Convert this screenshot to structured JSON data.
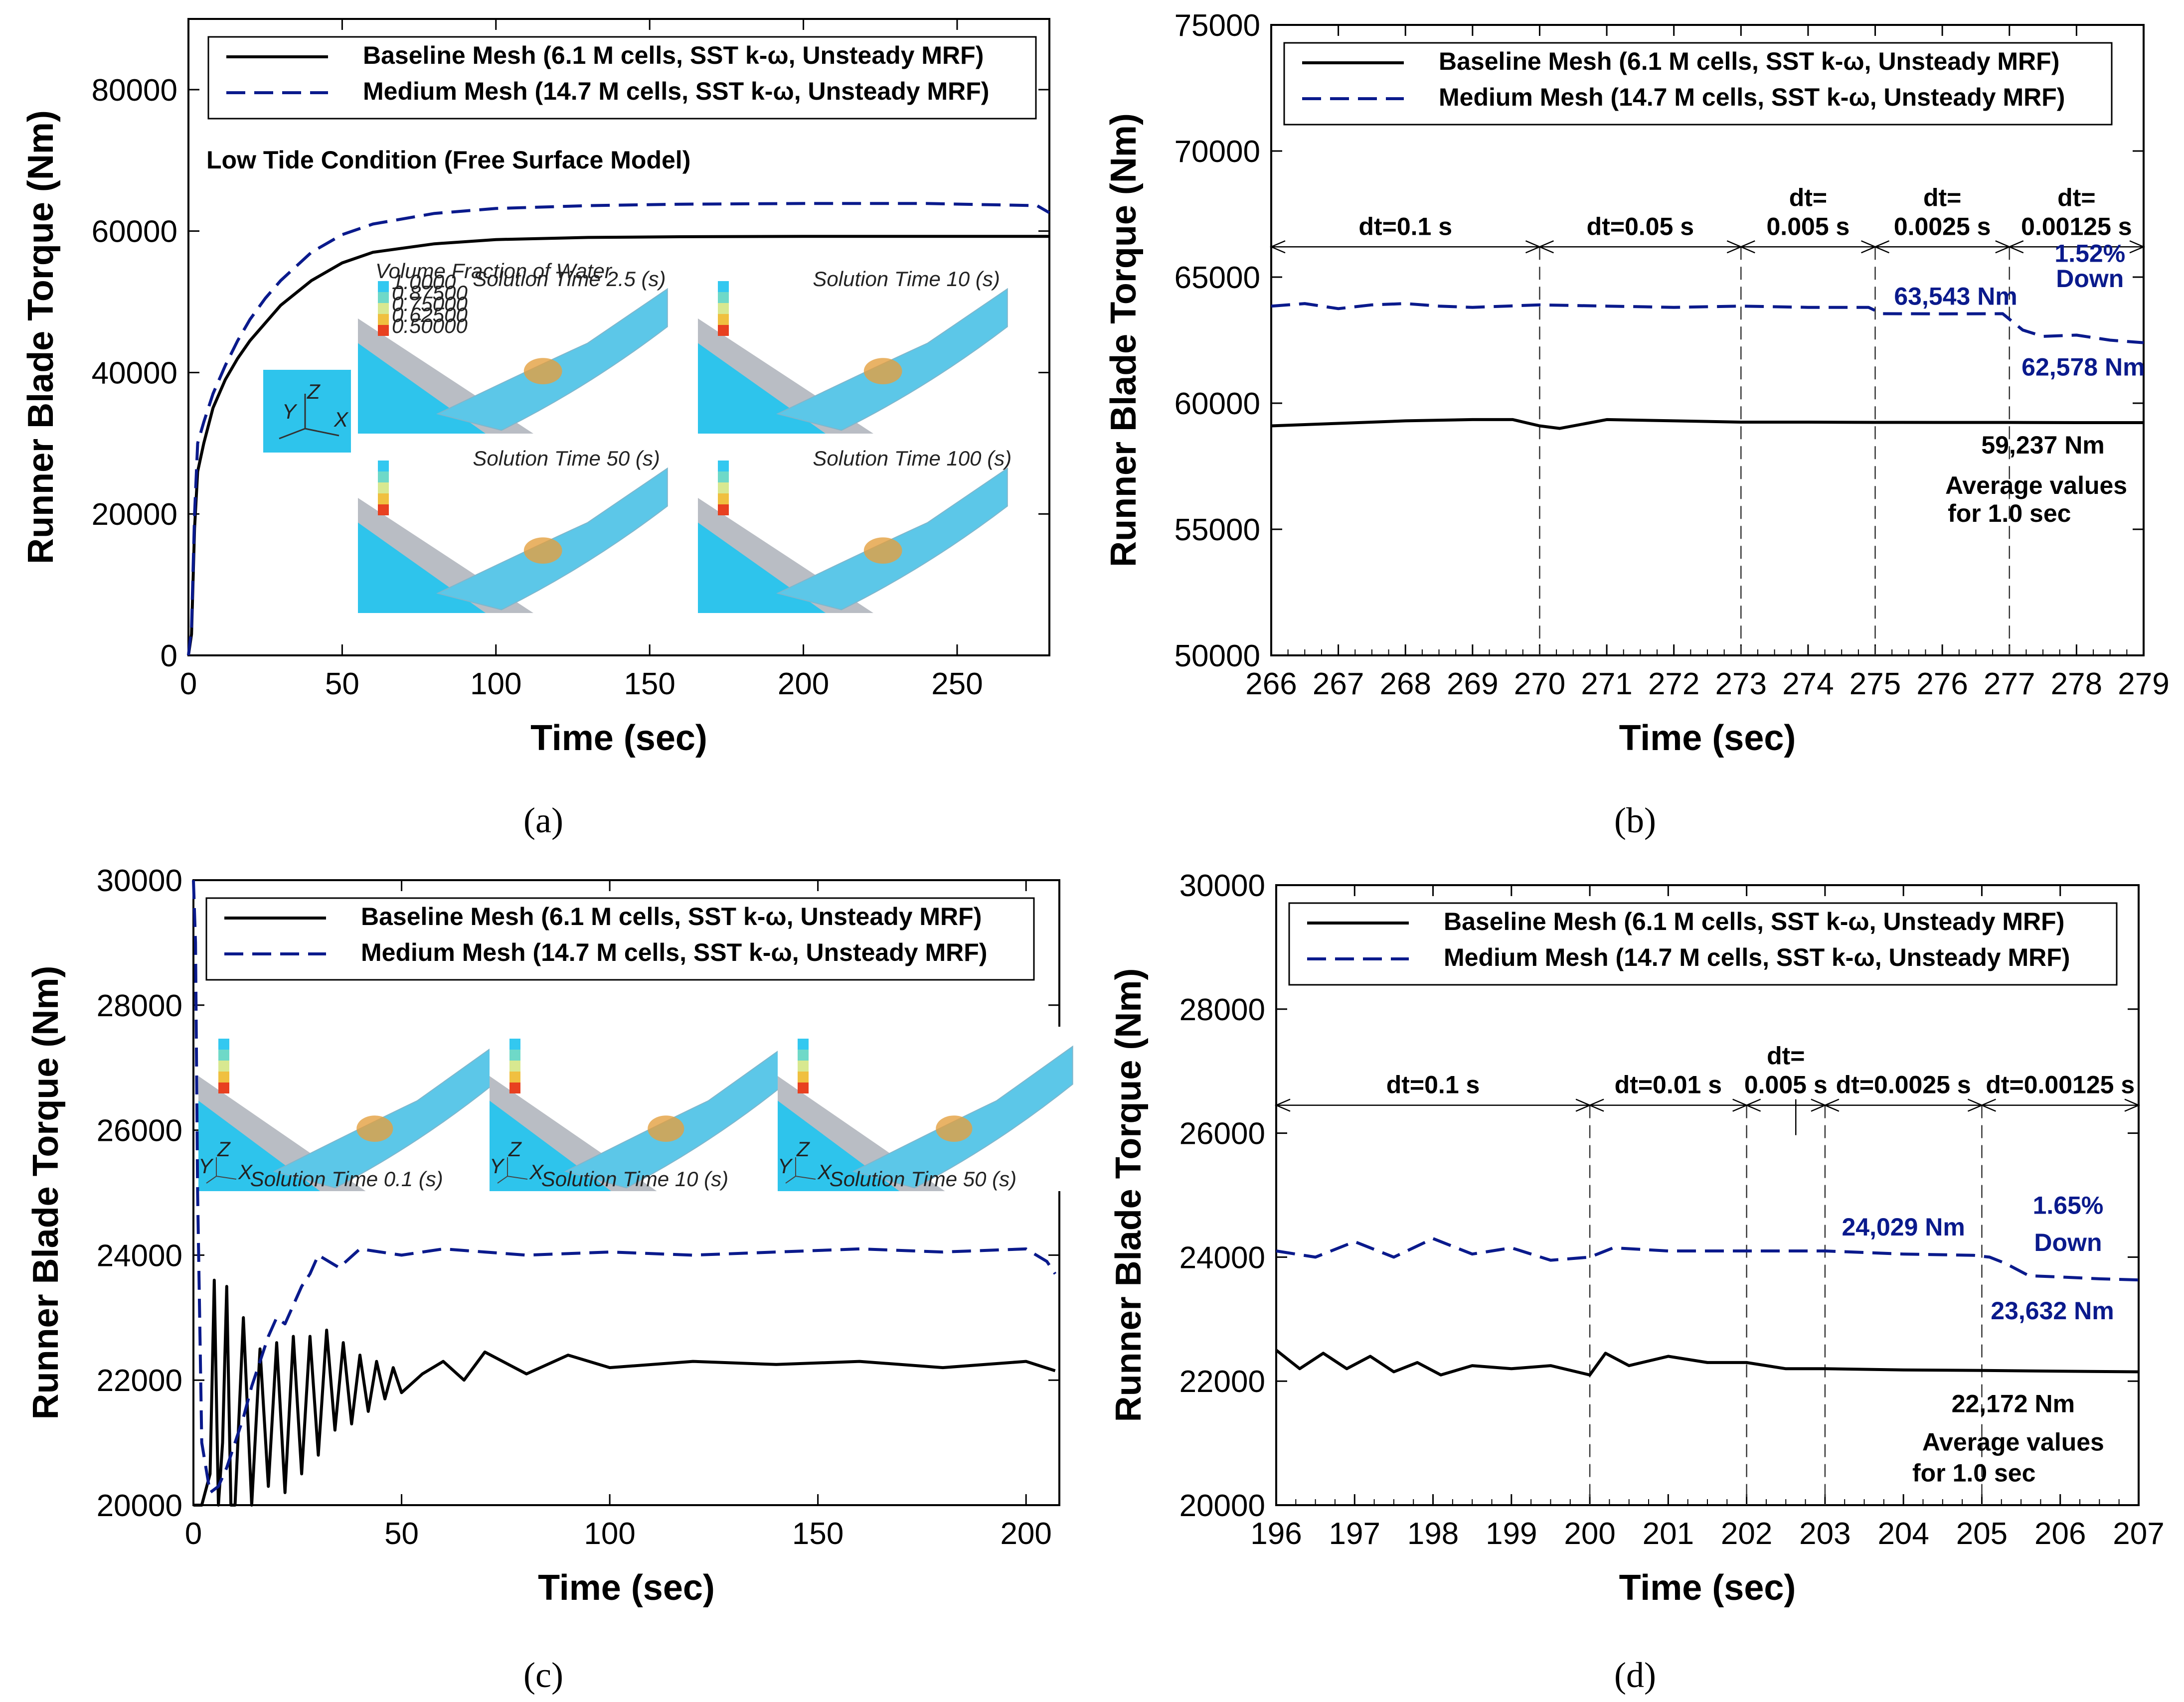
{
  "chart_data": [
    {
      "panel": "a",
      "type": "line",
      "caption": "(a)",
      "xlabel": "Time (sec)",
      "ylabel": "Runner Blade Torque (Nm)",
      "xlim": [
        0,
        280
      ],
      "ylim": [
        0,
        90000
      ],
      "xticks": [
        "0",
        "50",
        "100",
        "150",
        "200",
        "250"
      ],
      "yticks": [
        "0",
        "20000",
        "40000",
        "60000",
        "80000"
      ],
      "subtitle": "Low Tide Condition (Free Surface Model)",
      "legend": [
        "Baseline Mesh (6.1 M cells, SST k-ω, Unsteady MRF)",
        "Medium Mesh (14.7 M cells, SST k-ω, Unsteady MRF)"
      ],
      "series": [
        {
          "name": "Baseline Mesh (6.1 M cells, SST k-ω, Unsteady MRF)",
          "x": [
            0,
            1,
            2,
            3,
            5,
            8,
            12,
            16,
            20,
            25,
            30,
            40,
            50,
            60,
            80,
            100,
            130,
            160,
            200,
            240,
            280
          ],
          "values": [
            0,
            3000,
            18000,
            26000,
            30000,
            35000,
            39000,
            42000,
            44500,
            47000,
            49500,
            53000,
            55500,
            57000,
            58200,
            58800,
            59100,
            59200,
            59250,
            59250,
            59250
          ]
        },
        {
          "name": "Medium Mesh (14.7 M cells, SST k-ω, Unsteady MRF)",
          "x": [
            0,
            1,
            2,
            3,
            5,
            8,
            12,
            16,
            20,
            25,
            30,
            40,
            50,
            60,
            80,
            100,
            130,
            160,
            200,
            240,
            276,
            280
          ],
          "values": [
            0,
            4000,
            20000,
            30000,
            33000,
            37000,
            41000,
            44500,
            47500,
            50500,
            53000,
            57000,
            59500,
            61000,
            62500,
            63200,
            63600,
            63800,
            63900,
            63900,
            63600,
            62600
          ]
        }
      ],
      "insets": [
        "Solution Time 2.5 (s)",
        "Solution Time 10 (s)",
        "Solution Time 50 (s)",
        "Solution Time 100 (s)"
      ],
      "inset_legend": [
        "Volume Fraction of Water",
        "1.0000",
        "0.87500",
        "0.75000",
        "0.62500",
        "0.50000"
      ],
      "axes_icon": [
        "Z",
        "Y",
        "X"
      ]
    },
    {
      "panel": "b",
      "type": "line",
      "caption": "(b)",
      "xlabel": "Time (sec)",
      "ylabel": "Runner Blade Torque (Nm)",
      "xlim": [
        266,
        279
      ],
      "ylim": [
        50000,
        75000
      ],
      "xticks": [
        "266",
        "267",
        "268",
        "269",
        "270",
        "271",
        "272",
        "273",
        "274",
        "275",
        "276",
        "277",
        "278",
        "279"
      ],
      "yticks": [
        "50000",
        "55000",
        "60000",
        "65000",
        "70000",
        "75000"
      ],
      "legend": [
        "Baseline Mesh (6.1 M cells, SST k-ω, Unsteady MRF)",
        "Medium Mesh (14.7 M cells, SST k-ω, Unsteady MRF)"
      ],
      "series": [
        {
          "name": "Baseline Mesh (6.1 M cells, SST k-ω, Unsteady MRF)",
          "x": [
            266,
            267,
            268,
            269,
            269.6,
            270,
            270.3,
            270.7,
            271,
            272,
            273,
            274,
            275,
            276,
            277,
            278,
            279
          ],
          "values": [
            59100,
            59200,
            59300,
            59350,
            59350,
            59100,
            59000,
            59200,
            59350,
            59300,
            59250,
            59250,
            59240,
            59237,
            59237,
            59230,
            59230
          ]
        },
        {
          "name": "Medium Mesh (14.7 M cells, SST k-ω, Unsteady MRF)",
          "x": [
            266,
            266.5,
            267,
            267.5,
            268,
            268.5,
            269,
            269.5,
            270,
            271,
            272,
            273,
            274,
            274.9,
            275.1,
            276,
            276.9,
            277.2,
            277.5,
            278,
            278.5,
            279
          ],
          "values": [
            63850,
            63950,
            63750,
            63900,
            63950,
            63850,
            63800,
            63850,
            63900,
            63850,
            63800,
            63850,
            63800,
            63800,
            63550,
            63543,
            63550,
            62900,
            62650,
            62700,
            62500,
            62400
          ]
        }
      ],
      "regions": [
        {
          "label": "dt=0.1 s",
          "from": 266,
          "to": 270
        },
        {
          "label": "dt=0.05 s",
          "from": 270,
          "to": 273
        },
        {
          "label": "dt=\n0.005 s",
          "from": 273,
          "to": 275
        },
        {
          "label": "dt=\n0.0025 s",
          "from": 275,
          "to": 277
        },
        {
          "label": "dt=\n0.00125 s",
          "from": 277,
          "to": 279
        }
      ],
      "annotations": {
        "medium_before": "63,543 Nm",
        "medium_after": "62,578 Nm",
        "drop": "1.52%",
        "drop_word": "Down",
        "baseline": "59,237 Nm",
        "avg1": "Average values",
        "avg2": "for 1.0 sec"
      }
    },
    {
      "panel": "c",
      "type": "line",
      "caption": "(c)",
      "xlabel": "Time (sec)",
      "ylabel": "Runner Blade Torque (Nm)",
      "xlim": [
        0,
        208
      ],
      "ylim": [
        20000,
        30000
      ],
      "xticks": [
        "0",
        "50",
        "100",
        "150",
        "200"
      ],
      "yticks": [
        "20000",
        "22000",
        "24000",
        "26000",
        "28000",
        "30000"
      ],
      "legend": [
        "Baseline Mesh (6.1 M cells, SST k-ω, Unsteady MRF)",
        "Medium Mesh (14.7 M cells, SST k-ω, Unsteady MRF)"
      ],
      "series": [
        {
          "name": "Baseline Mesh (6.1 M cells, SST k-ω, Unsteady MRF)",
          "x": [
            0,
            2,
            4,
            5,
            6,
            7,
            8,
            9,
            10,
            11,
            12,
            14,
            16,
            18,
            20,
            22,
            24,
            26,
            28,
            30,
            32,
            34,
            36,
            38,
            40,
            42,
            44,
            46,
            48,
            50,
            55,
            60,
            65,
            70,
            80,
            90,
            100,
            120,
            140,
            160,
            180,
            200,
            207
          ],
          "values": [
            20000,
            20000,
            20500,
            23600,
            20000,
            21000,
            23500,
            20000,
            20000,
            21500,
            23000,
            20000,
            22500,
            20300,
            22600,
            20200,
            22700,
            20500,
            22700,
            20800,
            22800,
            21200,
            22600,
            21300,
            22400,
            21500,
            22300,
            21700,
            22200,
            21800,
            22100,
            22300,
            22000,
            22450,
            22100,
            22400,
            22200,
            22300,
            22250,
            22300,
            22200,
            22300,
            22150
          ]
        },
        {
          "name": "Medium Mesh (14.7 M cells, SST k-ω, Unsteady MRF)",
          "x": [
            0,
            0.5,
            1,
            2,
            4,
            6,
            8,
            10,
            12,
            14,
            16,
            18,
            20,
            22,
            24,
            26,
            28,
            30,
            35,
            40,
            50,
            60,
            70,
            80,
            100,
            120,
            140,
            160,
            180,
            200,
            205,
            207
          ],
          "values": [
            30000,
            29000,
            25000,
            21000,
            20200,
            20300,
            20600,
            21000,
            21400,
            21900,
            22300,
            22700,
            23000,
            22900,
            23200,
            23500,
            23700,
            24000,
            23800,
            24100,
            24000,
            24100,
            24050,
            24000,
            24050,
            24000,
            24050,
            24100,
            24050,
            24100,
            23900,
            23700
          ]
        }
      ],
      "insets": [
        "Solution Time 0.1 (s)",
        "Solution Time 10 (s)",
        "Solution Time 50 (s)"
      ],
      "axes_icon": [
        "Z",
        "Y",
        "X"
      ]
    },
    {
      "panel": "d",
      "type": "line",
      "caption": "(d)",
      "xlabel": "Time (sec)",
      "ylabel": "Runner Blade Torque (Nm)",
      "xlim": [
        196,
        207
      ],
      "ylim": [
        20000,
        30000
      ],
      "xticks": [
        "196",
        "197",
        "198",
        "199",
        "200",
        "201",
        "202",
        "203",
        "204",
        "205",
        "206",
        "207"
      ],
      "yticks": [
        "20000",
        "22000",
        "24000",
        "26000",
        "28000",
        "30000"
      ],
      "legend": [
        "Baseline Mesh (6.1 M cells, SST k-ω, Unsteady MRF)",
        "Medium Mesh (14.7 M cells, SST k-ω, Unsteady MRF)"
      ],
      "series": [
        {
          "name": "Baseline Mesh (6.1 M cells, SST k-ω, Unsteady MRF)",
          "x": [
            196,
            196.3,
            196.6,
            196.9,
            197.2,
            197.5,
            197.8,
            198.1,
            198.5,
            199,
            199.5,
            200,
            200.2,
            200.5,
            201,
            201.5,
            202,
            202.5,
            203,
            204,
            205,
            206,
            207
          ],
          "values": [
            22500,
            22200,
            22450,
            22200,
            22400,
            22150,
            22300,
            22100,
            22250,
            22200,
            22250,
            22100,
            22450,
            22250,
            22400,
            22300,
            22300,
            22200,
            22200,
            22180,
            22172,
            22160,
            22150
          ]
        },
        {
          "name": "Medium Mesh (14.7 M cells, SST k-ω, Unsteady MRF)",
          "x": [
            196,
            196.5,
            197,
            197.5,
            198,
            198.5,
            199,
            199.5,
            200,
            200.3,
            201,
            202,
            203,
            204,
            204.9,
            205.1,
            205.3,
            205.6,
            206,
            206.5,
            207
          ],
          "values": [
            24100,
            24000,
            24250,
            24000,
            24300,
            24050,
            24150,
            23950,
            24000,
            24150,
            24100,
            24100,
            24100,
            24050,
            24029,
            24000,
            23900,
            23700,
            23680,
            23650,
            23632
          ]
        }
      ],
      "regions": [
        {
          "label": "dt=0.1 s",
          "from": 196,
          "to": 200
        },
        {
          "label": "dt=0.01 s",
          "from": 200,
          "to": 202
        },
        {
          "label": "dt=\n0.005 s",
          "from": 202,
          "to": 203
        },
        {
          "label": "dt=0.0025 s",
          "from": 203,
          "to": 205
        },
        {
          "label": "dt=0.00125 s",
          "from": 205,
          "to": 207
        }
      ],
      "annotations": {
        "medium_before": "24,029 Nm",
        "medium_after": "23,632 Nm",
        "drop": "1.65%",
        "drop_word": "Down",
        "baseline": "22,172 Nm",
        "avg1": "Average values",
        "avg2": "for 1.0 sec"
      }
    }
  ],
  "colors": {
    "baseline": "#000000",
    "medium": "#0a1a8c",
    "water": "#2ec4ec",
    "wall": "#b9bdc4"
  }
}
